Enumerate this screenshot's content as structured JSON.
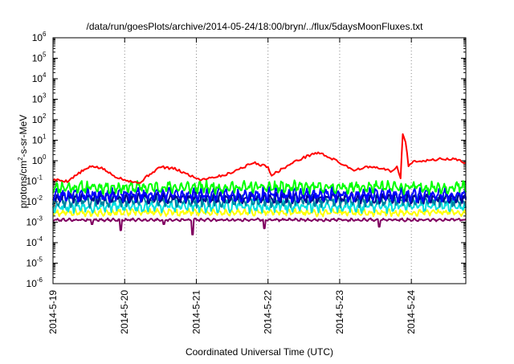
{
  "chart_data": {
    "type": "line",
    "title": "/data/run/goesPlots/archive/2014-05-24/18:00/bryn/../flux/5daysMoonFluxes.txt",
    "xlabel": "Coordinated Universal Time (UTC)",
    "ylabel": {
      "pre": "protons/cm",
      "sup": "2",
      "post": "-s-sr-MeV"
    },
    "xlim": [
      0,
      5.76
    ],
    "x_ticks": [
      {
        "x": 0,
        "label": "2014-5-19"
      },
      {
        "x": 1,
        "label": "2014-5-20"
      },
      {
        "x": 2,
        "label": "2014-5-21"
      },
      {
        "x": 3,
        "label": "2014-5-22"
      },
      {
        "x": 4,
        "label": "2014-5-23"
      },
      {
        "x": 5,
        "label": "2014-5-24"
      }
    ],
    "y_scale": "log",
    "ylim_exp": [
      -6,
      6
    ],
    "y_ticks_exp": [
      -6,
      -5,
      -4,
      -3,
      -2,
      -1,
      0,
      1,
      2,
      3,
      4,
      5,
      6
    ],
    "grid": "dotted vertical lines at day ticks",
    "series_colors": {
      "red": "#ff0000",
      "green": "#00ff00",
      "blue": "#0000ff",
      "teal": "#0080a0",
      "navy": "#000090",
      "cyan": "#00e0e0",
      "yellow": "#ffff00",
      "purple": "#800060"
    },
    "series": [
      {
        "color": "red",
        "description": "highest flux channel",
        "points": [
          [
            0,
            0.12
          ],
          [
            0.2,
            0.1
          ],
          [
            0.4,
            0.3
          ],
          [
            0.55,
            0.55
          ],
          [
            0.7,
            0.4
          ],
          [
            0.85,
            0.18
          ],
          [
            1.0,
            0.12
          ],
          [
            1.2,
            0.08
          ],
          [
            1.35,
            0.22
          ],
          [
            1.5,
            0.5
          ],
          [
            1.7,
            0.4
          ],
          [
            1.9,
            0.2
          ],
          [
            2.05,
            0.12
          ],
          [
            2.2,
            0.15
          ],
          [
            2.4,
            0.2
          ],
          [
            2.6,
            0.4
          ],
          [
            2.8,
            0.8
          ],
          [
            3.0,
            0.5
          ],
          [
            3.05,
            0.2
          ],
          [
            3.2,
            0.4
          ],
          [
            3.4,
            1.0
          ],
          [
            3.6,
            2.0
          ],
          [
            3.7,
            2.5
          ],
          [
            3.85,
            1.5
          ],
          [
            4.0,
            0.8
          ],
          [
            4.2,
            0.35
          ],
          [
            4.4,
            0.5
          ],
          [
            4.6,
            0.4
          ],
          [
            4.75,
            0.3
          ],
          [
            4.8,
            0.5
          ],
          [
            4.85,
            0.15
          ],
          [
            4.88,
            20
          ],
          [
            4.92,
            8
          ],
          [
            4.96,
            0.6
          ],
          [
            5.05,
            1.0
          ],
          [
            5.2,
            1.0
          ],
          [
            5.4,
            1.2
          ],
          [
            5.6,
            1.2
          ],
          [
            5.76,
            0.8
          ]
        ]
      },
      {
        "color": "green",
        "description": "noisy channel ~5e-2",
        "base": 0.05,
        "amp": 0.35,
        "seed": 11
      },
      {
        "color": "blue",
        "description": "noisy channel ~2e-2",
        "base": 0.022,
        "amp": 0.4,
        "seed": 23
      },
      {
        "color": "teal",
        "description": "noisy channel ~1e-2",
        "base": 0.011,
        "amp": 0.35,
        "seed": 37
      },
      {
        "color": "navy",
        "description": "noisy channel ~1.5e-2",
        "base": 0.015,
        "amp": 0.3,
        "seed": 41
      },
      {
        "color": "cyan",
        "description": "noisy channel ~6e-3",
        "base": 0.006,
        "amp": 0.35,
        "seed": 53
      },
      {
        "color": "yellow",
        "description": "channel ~3e-3",
        "base": 0.003,
        "amp": 0.2,
        "seed": 67
      },
      {
        "color": "purple",
        "description": "lowest channel ~1.3e-3 with dips",
        "base": 0.0013,
        "amp": 0.08,
        "seed": 79,
        "dips": [
          [
            0.95,
            0.0004
          ],
          [
            1.95,
            0.00025
          ],
          [
            2.95,
            0.0005
          ],
          [
            4.55,
            0.0006
          ],
          [
            0.55,
            0.0008
          ],
          [
            1.55,
            0.0008
          ]
        ]
      }
    ]
  }
}
